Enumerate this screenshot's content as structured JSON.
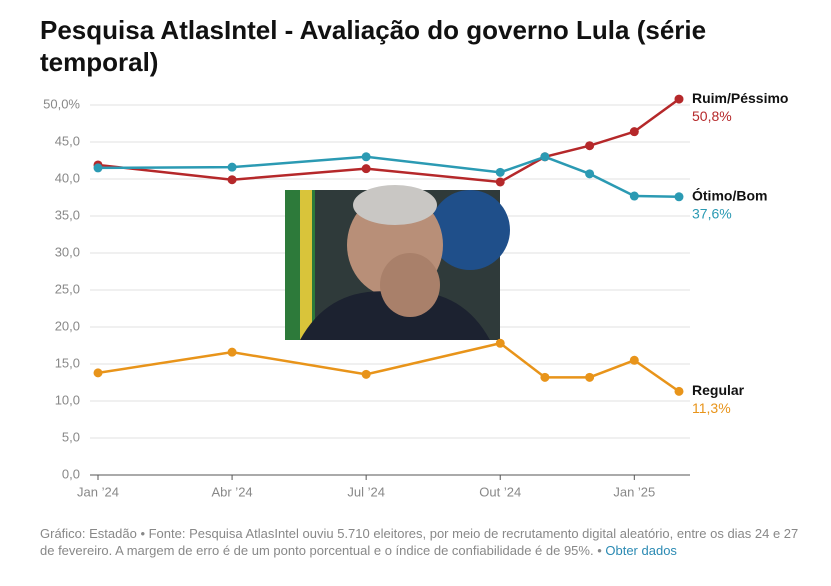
{
  "chart_data": {
    "type": "line",
    "title": "Pesquisa AtlasIntel - Avaliação do governo Lula (série temporal)",
    "x": [
      "2024-01",
      "2024-04",
      "2024-07",
      "2024-10",
      "2024-11",
      "2024-12",
      "2025-01",
      "2025-02"
    ],
    "xlim": [
      "2024-01",
      "2025-02"
    ],
    "xticks": [
      {
        "value": "2024-01",
        "label": "Jan ’24"
      },
      {
        "value": "2024-04",
        "label": "Abr ’24"
      },
      {
        "value": "2024-07",
        "label": "Jul ’24"
      },
      {
        "value": "2024-10",
        "label": "Out ’24"
      },
      {
        "value": "2025-01",
        "label": "Jan ’25"
      }
    ],
    "ylim": [
      0,
      50
    ],
    "yticks": [
      {
        "value": 0,
        "label": "0,0"
      },
      {
        "value": 5,
        "label": "5,0"
      },
      {
        "value": 10,
        "label": "10,0"
      },
      {
        "value": 15,
        "label": "15,0"
      },
      {
        "value": 20,
        "label": "20,0"
      },
      {
        "value": 25,
        "label": "25,0"
      },
      {
        "value": 30,
        "label": "30,0"
      },
      {
        "value": 35,
        "label": "35,0"
      },
      {
        "value": 40,
        "label": "40,0"
      },
      {
        "value": 45,
        "label": "45,0"
      },
      {
        "value": 50,
        "label": "50,0%"
      }
    ],
    "grid": true,
    "series": [
      {
        "name": "Ruim/Péssimo",
        "color": "#b5282a",
        "values": [
          41.9,
          39.9,
          41.4,
          39.6,
          43.0,
          44.5,
          46.4,
          50.8
        ],
        "value_labels": [
          null,
          null,
          null,
          null,
          null,
          null,
          null,
          "50,8%"
        ]
      },
      {
        "name": "Ótimo/Bom",
        "color": "#2b9ab3",
        "values": [
          41.5,
          41.6,
          43.0,
          40.9,
          43.0,
          40.7,
          37.7,
          37.6
        ],
        "value_labels": [
          null,
          null,
          null,
          null,
          null,
          null,
          null,
          "37,6%"
        ]
      },
      {
        "name": "Regular",
        "color": "#e8941a",
        "values": [
          13.8,
          16.6,
          13.6,
          17.8,
          13.2,
          13.2,
          15.5,
          11.3
        ],
        "value_labels": [
          null,
          null,
          null,
          null,
          null,
          null,
          null,
          "11,3%"
        ]
      }
    ],
    "footer": "Gráfico: Estadão • Fonte: Pesquisa AtlasIntel ouviu 5.710 eleitores, por meio de recrutamento digital aleatório, entre os dias 24 e 27 de fevereiro. A margem de erro é de um ponto porcentual e o índice de confiabilidade é de 95%. •",
    "link": "Obter dados"
  }
}
